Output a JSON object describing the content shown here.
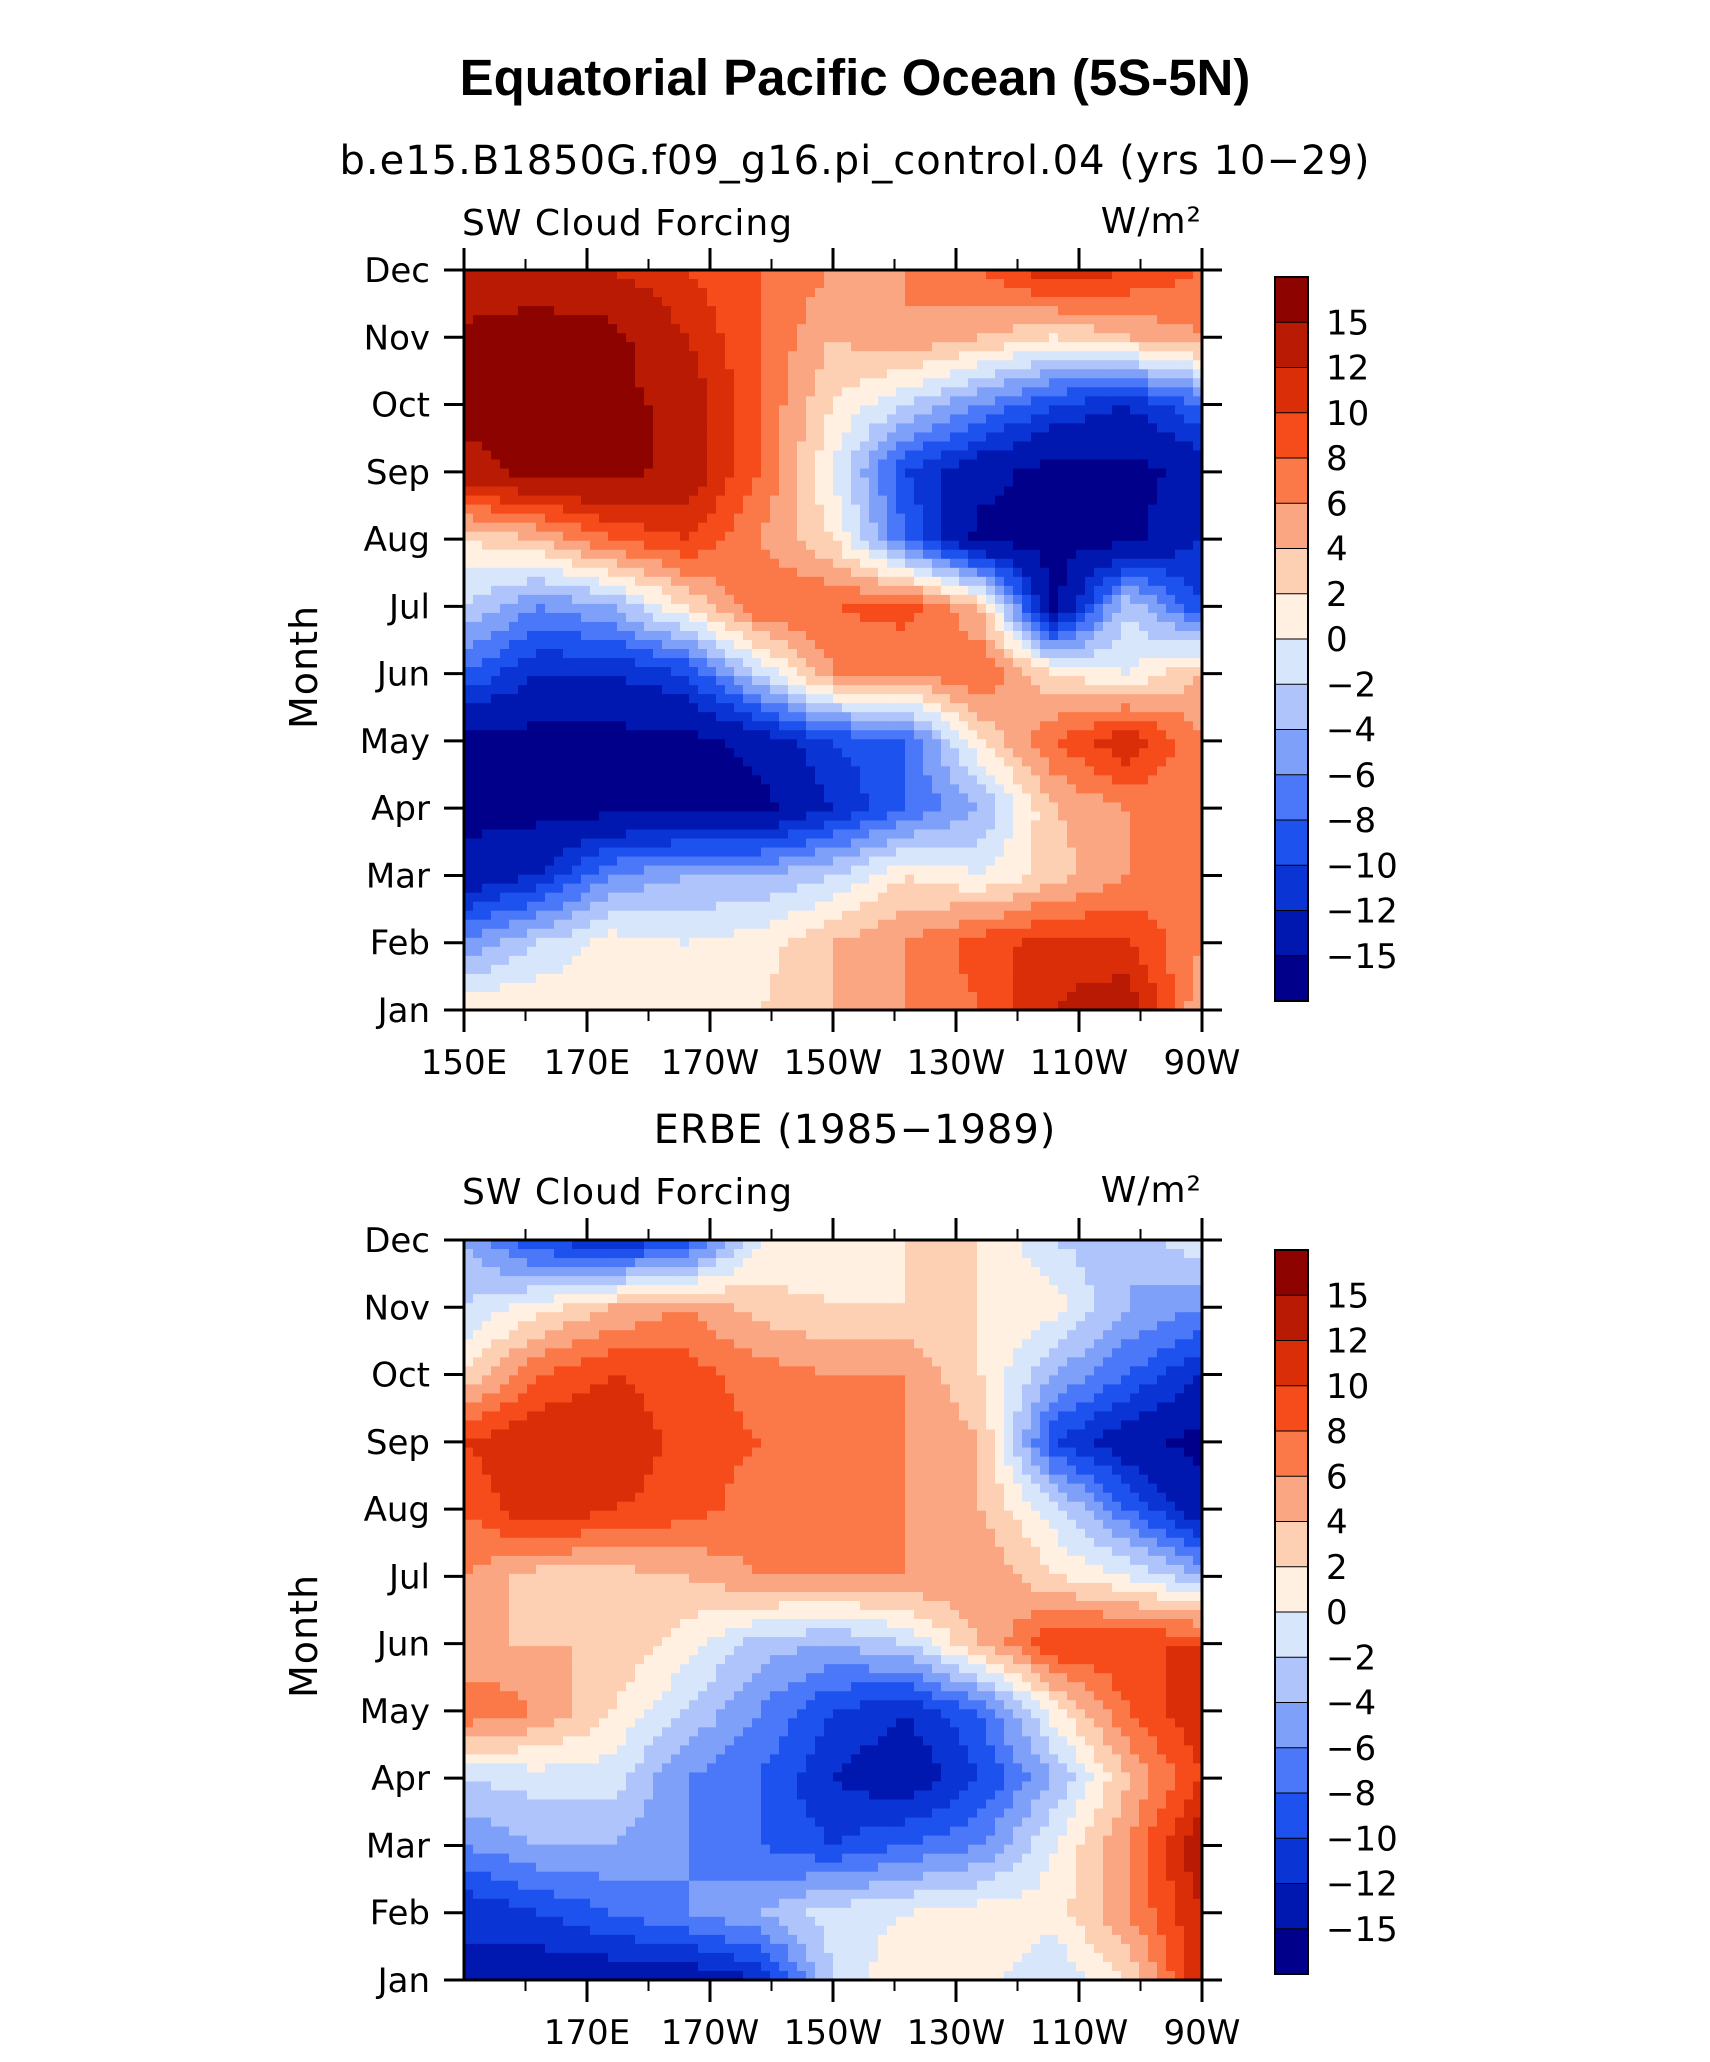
{
  "figure": {
    "title": "Equatorial Pacific Ocean (5S-5N)"
  },
  "colors": {
    "palette": [
      "#00008a",
      "#0018b0",
      "#0a34d4",
      "#1e52ee",
      "#4a78f8",
      "#7fa0f8",
      "#aec4fa",
      "#d8e6fc",
      "#fff0e2",
      "#fdd0b4",
      "#fba682",
      "#fb7848",
      "#f64c1c",
      "#d92e08",
      "#b81a04",
      "#8c0300"
    ]
  },
  "chart_data": [
    {
      "type": "heatmap",
      "title": "b.e15.B1850G.f09_g16.pi_control.04 (yrs 10−29)",
      "left_string": "SW Cloud Forcing",
      "right_string": "W/m²",
      "ylabel": "Month",
      "xlabel": "",
      "x_ticks": [
        "150E",
        "170E",
        "170W",
        "150W",
        "130W",
        "110W",
        "90W"
      ],
      "x_tick_lon": [
        150,
        170,
        190,
        210,
        230,
        250,
        270
      ],
      "xlim": [
        150,
        270
      ],
      "y_ticks": [
        "Jan",
        "Feb",
        "Mar",
        "Apr",
        "May",
        "Jun",
        "Jul",
        "Aug",
        "Sep",
        "Oct",
        "Nov",
        "Dec"
      ],
      "levels": [
        -15,
        -12,
        -10,
        -8,
        -6,
        -4,
        -2,
        0,
        2,
        4,
        6,
        8,
        10,
        12,
        15
      ],
      "colorbar_labels": [
        "15",
        "12",
        "10",
        "8",
        "6",
        "4",
        "2",
        "0",
        "−2",
        "−4",
        "−6",
        "−8",
        "−10",
        "−12",
        "−15"
      ],
      "grid": {
        "lon": [
          150,
          162,
          174,
          186,
          198,
          210,
          222,
          234,
          246,
          258,
          270
        ],
        "values": [
          [
            2,
            2,
            1,
            1,
            2,
            4,
            6,
            8,
            12,
            14,
            4
          ],
          [
            -6,
            -2,
            1,
            0,
            1,
            4,
            6,
            9,
            11,
            10,
            6
          ],
          [
            -14,
            -12,
            -6,
            -4,
            -4,
            -2,
            2,
            0,
            3,
            6,
            8
          ],
          [
            -16,
            -16,
            -16,
            -16,
            -16,
            -12,
            -8,
            -4,
            4,
            6,
            6
          ],
          [
            -16,
            -16,
            -16,
            -16,
            -14,
            -10,
            -8,
            2,
            8,
            12,
            6
          ],
          [
            -8,
            -12,
            -12,
            -10,
            -2,
            6,
            6,
            8,
            2,
            0,
            4
          ],
          [
            -2,
            -6,
            -4,
            2,
            8,
            8,
            9,
            4,
            -16,
            -2,
            -10
          ],
          [
            2,
            4,
            8,
            10,
            6,
            2,
            -8,
            -16,
            -16,
            -16,
            -12
          ],
          [
            14,
            16,
            16,
            14,
            8,
            0,
            -10,
            -14,
            -16,
            -16,
            -14
          ],
          [
            16,
            16,
            16,
            14,
            8,
            2,
            -2,
            -6,
            -10,
            -12,
            -8
          ],
          [
            16,
            16,
            16,
            12,
            8,
            4,
            6,
            4,
            2,
            4,
            6
          ],
          [
            12,
            14,
            12,
            10,
            8,
            6,
            6,
            8,
            12,
            10,
            8
          ]
        ]
      }
    },
    {
      "type": "heatmap",
      "title": "ERBE (1985−1989)",
      "left_string": "SW Cloud Forcing",
      "right_string": "W/m²",
      "ylabel": "Month",
      "xlabel": "",
      "x_ticks": [
        "170E",
        "170W",
        "150W",
        "130W",
        "110W",
        "90W"
      ],
      "x_tick_lon": [
        170,
        190,
        210,
        230,
        250,
        270
      ],
      "xlim": [
        150,
        270
      ],
      "y_ticks": [
        "Jan",
        "Feb",
        "Mar",
        "Apr",
        "May",
        "Jun",
        "Jul",
        "Aug",
        "Sep",
        "Oct",
        "Nov",
        "Dec"
      ],
      "levels": [
        -15,
        -12,
        -10,
        -8,
        -6,
        -4,
        -2,
        0,
        2,
        4,
        6,
        8,
        10,
        12,
        15
      ],
      "colorbar_labels": [
        "15",
        "12",
        "10",
        "8",
        "6",
        "4",
        "2",
        "0",
        "−2",
        "−4",
        "−6",
        "−8",
        "−10",
        "−12",
        "−15"
      ],
      "grid": {
        "lon": [
          150,
          162,
          174,
          186,
          198,
          210,
          222,
          234,
          246,
          258,
          270
        ],
        "values": [
          [
            -12,
            -14,
            -14,
            -14,
            -12,
            -2,
            2,
            1,
            -2,
            2,
            12
          ],
          [
            -12,
            -10,
            -8,
            -6,
            -4,
            -1,
            0,
            1,
            1,
            6,
            12
          ],
          [
            -6,
            -4,
            -4,
            -6,
            -8,
            -10,
            -8,
            -6,
            0,
            6,
            14
          ],
          [
            -2,
            -1,
            -1,
            -6,
            -8,
            -12,
            -14,
            -10,
            -4,
            4,
            10
          ],
          [
            8,
            6,
            2,
            -2,
            -6,
            -10,
            -12,
            -8,
            1,
            8,
            12
          ],
          [
            4,
            4,
            4,
            1,
            -3,
            -4,
            -2,
            4,
            10,
            10,
            10
          ],
          [
            6,
            3,
            3,
            4,
            6,
            6,
            6,
            6,
            2,
            0,
            -4
          ],
          [
            8,
            12,
            10,
            9,
            7,
            6,
            6,
            4,
            -1,
            -8,
            -14
          ],
          [
            10,
            12,
            12,
            9,
            8,
            6,
            6,
            4,
            -10,
            -14,
            -16
          ],
          [
            2,
            8,
            10,
            9,
            7,
            6,
            6,
            2,
            -4,
            -8,
            -12
          ],
          [
            -2,
            1,
            4,
            6,
            3,
            2,
            2,
            2,
            1,
            -4,
            -6
          ],
          [
            -4,
            -10,
            -12,
            -10,
            0,
            1,
            2,
            2,
            -2,
            -4,
            0
          ]
        ]
      }
    }
  ]
}
